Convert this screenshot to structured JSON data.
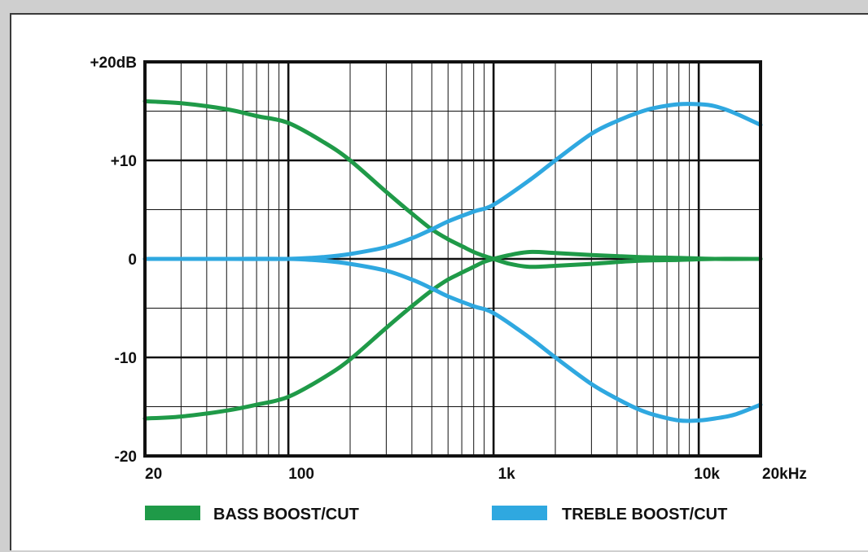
{
  "chart_data": {
    "type": "line",
    "title": "",
    "xlabel": "",
    "ylabel": "",
    "x_scale": "log",
    "xlim": [
      20,
      20000
    ],
    "ylim": [
      -20,
      20
    ],
    "grid": true,
    "legend_position": "bottom",
    "x_ticks": [
      {
        "value": 20,
        "label": "20"
      },
      {
        "value": 100,
        "label": "100"
      },
      {
        "value": 1000,
        "label": "1k"
      },
      {
        "value": 10000,
        "label": "10k"
      },
      {
        "value": 20000,
        "label": "20kHz"
      }
    ],
    "y_ticks": [
      {
        "value": 20,
        "label": "+20dB"
      },
      {
        "value": 10,
        "label": "+10"
      },
      {
        "value": 0,
        "label": "0"
      },
      {
        "value": -10,
        "label": "-10"
      },
      {
        "value": -20,
        "label": "-20"
      }
    ],
    "series": [
      {
        "name": "BASS BOOST/CUT",
        "color": "#1f9a48",
        "curves": [
          {
            "x": [
              20,
              30,
              50,
              70,
              100,
              150,
              200,
              300,
              400,
              500,
              600,
              700,
              800,
              900,
              1000,
              1200,
              1500,
              2000,
              3000,
              5000,
              8000,
              12000,
              20000
            ],
            "y": [
              16,
              15.8,
              15.2,
              14.5,
              13.8,
              11.8,
              10,
              6.8,
              4.6,
              3.0,
              2.0,
              1.3,
              0.7,
              0.3,
              0,
              -0.5,
              -0.8,
              -0.7,
              -0.5,
              -0.2,
              -0.1,
              0,
              0
            ]
          },
          {
            "x": [
              20,
              30,
              50,
              70,
              100,
              150,
              200,
              300,
              400,
              500,
              600,
              700,
              800,
              900,
              1000,
              1200,
              1500,
              2000,
              3000,
              5000,
              8000,
              12000,
              20000
            ],
            "y": [
              -16.2,
              -16,
              -15.4,
              -14.8,
              -14,
              -12,
              -10.2,
              -7.0,
              -4.8,
              -3.2,
              -2.1,
              -1.4,
              -0.8,
              -0.3,
              0,
              0.4,
              0.7,
              0.6,
              0.4,
              0.2,
              0.1,
              0,
              0
            ]
          }
        ]
      },
      {
        "name": "TREBLE BOOST/CUT",
        "color": "#2fa8e0",
        "curves": [
          {
            "x": [
              20,
              50,
              100,
              150,
              200,
              300,
              400,
              500,
              600,
              800,
              1000,
              1500,
              2000,
              3000,
              4000,
              5000,
              6000,
              8000,
              10000,
              12000,
              15000,
              20000
            ],
            "y": [
              0,
              0,
              0,
              0.2,
              0.5,
              1.2,
              2.1,
              3.0,
              3.8,
              4.8,
              5.5,
              8.0,
              10.0,
              12.7,
              14.0,
              14.8,
              15.3,
              15.7,
              15.7,
              15.5,
              14.8,
              13.6
            ]
          },
          {
            "x": [
              20,
              50,
              100,
              150,
              200,
              300,
              400,
              500,
              600,
              800,
              1000,
              1500,
              2000,
              3000,
              4000,
              5000,
              6000,
              8000,
              10000,
              12000,
              15000,
              20000
            ],
            "y": [
              0,
              0,
              0,
              -0.2,
              -0.5,
              -1.2,
              -2.1,
              -3.0,
              -3.8,
              -4.8,
              -5.5,
              -8.0,
              -10.0,
              -12.7,
              -14.2,
              -15.2,
              -15.8,
              -16.4,
              -16.4,
              -16.2,
              -15.8,
              -14.8
            ]
          }
        ]
      }
    ]
  }
}
